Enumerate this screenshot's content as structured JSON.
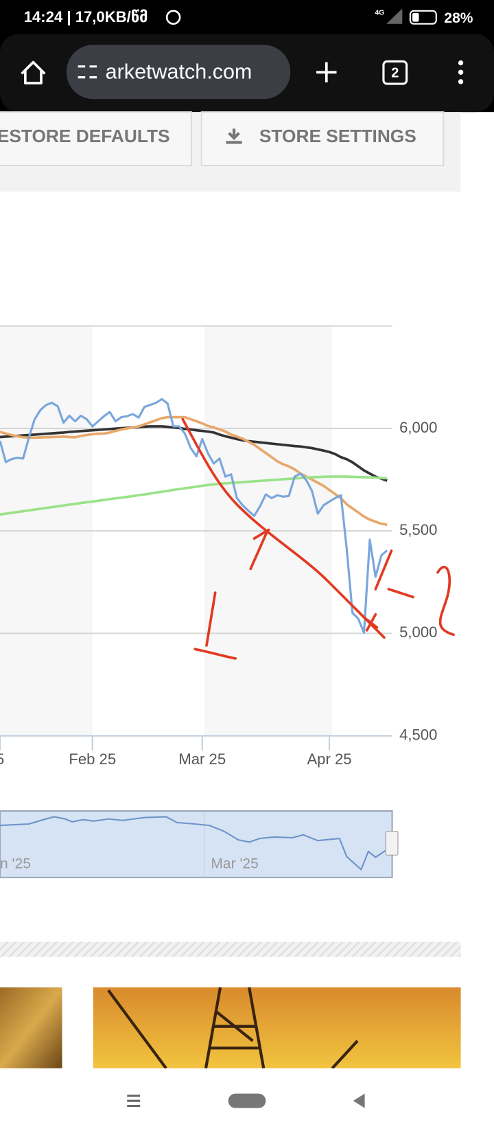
{
  "status_bar": {
    "time_speed": "14:24 | 17,0KB/წმ",
    "network": "4G",
    "battery": "28%"
  },
  "browser": {
    "url": "arketwatch.com",
    "tab_count": "2"
  },
  "toolbar_buttons": [
    "ESTORE DEFAULTS",
    "STORE SETTINGS"
  ],
  "chart_data": {
    "type": "line",
    "categories": [
      "5",
      null,
      null,
      null,
      null,
      null,
      null,
      null,
      null,
      null,
      null,
      null,
      null,
      null,
      null,
      null,
      "Feb 25",
      null,
      null,
      null,
      null,
      null,
      null,
      null,
      null,
      null,
      null,
      null,
      null,
      null,
      null,
      null,
      null,
      null,
      null,
      "Mar 25",
      null,
      null,
      null,
      null,
      null,
      null,
      null,
      null,
      null,
      null,
      null,
      null,
      null,
      null,
      null,
      null,
      null,
      null,
      null,
      null,
      null,
      "Apr 25",
      null,
      null,
      null,
      null,
      null,
      null,
      null,
      null,
      null,
      null
    ],
    "series": [
      {
        "color": "#7aa6dc",
        "values": [
          5940,
          5836,
          5850,
          5857,
          5853,
          5955,
          6045,
          6090,
          6115,
          6125,
          6108,
          6028,
          6062,
          6035,
          6062,
          6045,
          6010,
          6035,
          6060,
          6080,
          6035,
          6055,
          6060,
          6070,
          6053,
          6105,
          6115,
          6125,
          6143,
          6122,
          6010,
          6010,
          5975,
          5905,
          5864,
          5948,
          5878,
          5829,
          5853,
          5765,
          5776,
          5660,
          5625,
          5598,
          5573,
          5620,
          5678,
          5660,
          5674,
          5667,
          5671,
          5765,
          5780,
          5748,
          5695,
          5584,
          5625,
          5643,
          5660,
          5674,
          5415,
          5100,
          5072,
          5003,
          5457,
          5276,
          5380,
          5405
        ]
      },
      {
        "color": "#333333",
        "values": [
          5958,
          5960,
          5962,
          5964,
          5966,
          5968,
          5970,
          5972,
          5974,
          5976,
          5978,
          5980,
          5983,
          5985,
          5987,
          5989,
          5991,
          5993,
          5995,
          5997,
          5999,
          6001,
          6003,
          6005,
          6007,
          6009,
          6010,
          6010,
          6010,
          6008,
          6005,
          6002,
          5998,
          5995,
          5991,
          5988,
          5985,
          5980,
          5970,
          5962,
          5955,
          5948,
          5942,
          5938,
          5935,
          5932,
          5929,
          5926,
          5923,
          5920,
          5917,
          5914,
          5912,
          5908,
          5904,
          5898,
          5892,
          5885,
          5875,
          5860,
          5850,
          5835,
          5815,
          5795,
          5780,
          5765,
          5755,
          5745
        ]
      },
      {
        "color": "#e8a86b",
        "values": [
          5983,
          5975,
          5968,
          5962,
          5957,
          5955,
          5955,
          5956,
          5957,
          5958,
          5959,
          5960,
          5958,
          5957,
          5963,
          5968,
          5972,
          5975,
          5975,
          5980,
          5988,
          5995,
          6000,
          6005,
          6010,
          6020,
          6030,
          6040,
          6050,
          6055,
          6055,
          6055,
          6055,
          6045,
          6035,
          6025,
          6012,
          6005,
          5995,
          5985,
          5970,
          5960,
          5950,
          5935,
          5920,
          5900,
          5880,
          5860,
          5840,
          5825,
          5815,
          5800,
          5780,
          5765,
          5750,
          5735,
          5720,
          5700,
          5680,
          5660,
          5630,
          5610,
          5590,
          5570,
          5555,
          5545,
          5535,
          5530
        ]
      },
      {
        "color": "#9be28a",
        "values": [
          5580,
          5584,
          5588,
          5592,
          5596,
          5600,
          5604,
          5608,
          5612,
          5616,
          5620,
          5624,
          5628,
          5632,
          5636,
          5640,
          5643,
          5647,
          5651,
          5655,
          5659,
          5662,
          5666,
          5670,
          5674,
          5678,
          5682,
          5687,
          5691,
          5695,
          5700,
          5704,
          5708,
          5712,
          5716,
          5720,
          5724,
          5727,
          5730,
          5732,
          5734,
          5736,
          5738,
          5740,
          5742,
          5744,
          5746,
          5748,
          5750,
          5752,
          5754,
          5756,
          5758,
          5760,
          5762,
          5763,
          5764,
          5765,
          5765,
          5765,
          5765,
          5764,
          5763,
          5762,
          5761,
          5760,
          5758,
          5757
        ]
      }
    ],
    "ylim": [
      4500,
      6500
    ],
    "yticks": [
      {
        "value": 4500,
        "label": "4,500"
      },
      {
        "value": 5000,
        "label": "5,000"
      },
      {
        "value": 5500,
        "label": "5,500"
      },
      {
        "value": 6000,
        "label": "6,000"
      }
    ],
    "grid": true,
    "navigator_labels": [
      "n '25",
      "Mar '25"
    ],
    "annotations": [
      "1",
      "2"
    ]
  }
}
